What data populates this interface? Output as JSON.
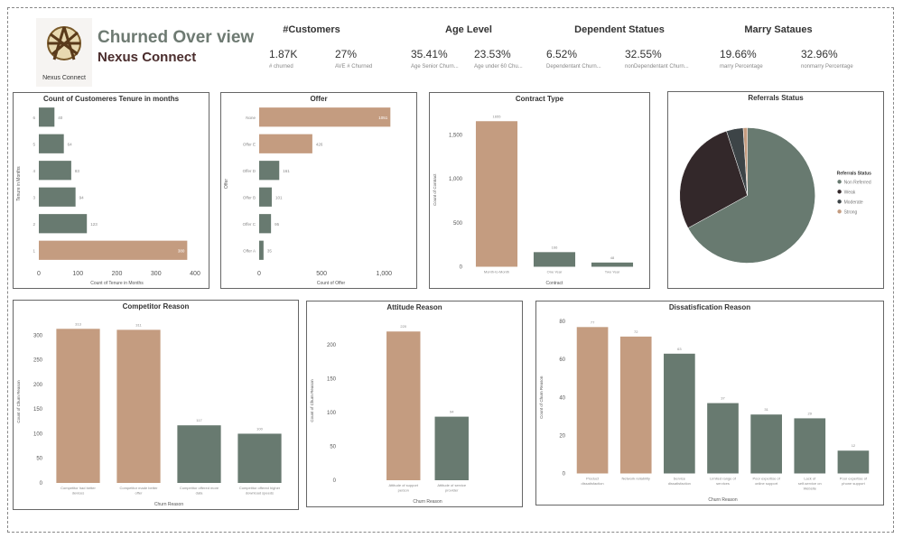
{
  "header": {
    "logo_text": "Nexus Connect",
    "title": "Churned Over view",
    "subtitle": "Nexus Connect"
  },
  "kpis": [
    {
      "title": "#Customers",
      "items": [
        {
          "value": "1.87K",
          "label": "# churned"
        },
        {
          "value": "27%",
          "label": "AVE # Churned"
        }
      ]
    },
    {
      "title": "Age Level",
      "items": [
        {
          "value": "35.41%",
          "label": "Age Senior Churn..."
        },
        {
          "value": "23.53%",
          "label": "Age under 60 Chu..."
        }
      ]
    },
    {
      "title": "Dependent Statues",
      "items": [
        {
          "value": "6.52%",
          "label": "Dependentant Churn..."
        },
        {
          "value": "32.55%",
          "label": "nonDependentant Churn..."
        }
      ]
    },
    {
      "title": "Marry Sataues",
      "items": [
        {
          "value": "19.66%",
          "label": "marry Percentage"
        },
        {
          "value": "32.96%",
          "label": "nonmarry Percentage"
        }
      ]
    }
  ],
  "colors": {
    "tan": "#c49c80",
    "green": "#687a70",
    "weak": "#33282a",
    "moderate": "#3d4447"
  },
  "chart_data": [
    {
      "id": "tenure",
      "type": "bar",
      "orientation": "horizontal",
      "title": "Count of Customeres Tenure in months",
      "xlabel": "Count of Tenure in Months",
      "ylabel": "Tenure in Months",
      "categories": [
        "6",
        "5",
        "4",
        "3",
        "2",
        "1"
      ],
      "values": [
        40,
        64,
        83,
        94,
        123,
        380
      ],
      "colors": [
        "#687a70",
        "#687a70",
        "#687a70",
        "#687a70",
        "#687a70",
        "#c49c80"
      ],
      "ticks": [
        0,
        100,
        200,
        300,
        400
      ],
      "xlim": [
        0,
        400
      ]
    },
    {
      "id": "offer",
      "type": "bar",
      "orientation": "horizontal",
      "title": "Offer",
      "xlabel": "Count of Offer",
      "ylabel": "Offer",
      "categories": [
        "None",
        "Offer E",
        "Offer D",
        "Offer B",
        "Offer C",
        "Offer A"
      ],
      "values": [
        1051,
        426,
        161,
        101,
        95,
        35
      ],
      "colors": [
        "#c49c80",
        "#c49c80",
        "#687a70",
        "#687a70",
        "#687a70",
        "#687a70"
      ],
      "ticks": [
        0,
        500,
        1000
      ],
      "tick_labels": [
        "0",
        "500",
        "1,000"
      ],
      "xlim": [
        0,
        1150
      ]
    },
    {
      "id": "contract",
      "type": "bar",
      "orientation": "vertical",
      "title": "Contract Type",
      "xlabel": "Contract",
      "ylabel": "Count of Contract",
      "categories": [
        "Month-to-Month",
        "One Year",
        "Two Year"
      ],
      "values": [
        1655,
        166,
        48
      ],
      "colors": [
        "#c49c80",
        "#687a70",
        "#687a70"
      ],
      "ticks": [
        0,
        500,
        1000,
        1500
      ],
      "tick_labels": [
        "0",
        "500",
        "1,000",
        "1,500"
      ],
      "ylim": [
        0,
        1750
      ]
    },
    {
      "id": "referral",
      "type": "pie",
      "title": "Referrals Status",
      "legend_title": "Referrals Status",
      "legend": "right",
      "slices": [
        {
          "name": "Non Referred",
          "value": 67,
          "color": "#687a70"
        },
        {
          "name": "Weak",
          "value": 28,
          "color": "#33282a"
        },
        {
          "name": "Moderate",
          "value": 4,
          "color": "#3d4447"
        },
        {
          "name": "Strong",
          "value": 1,
          "color": "#c49c80"
        }
      ]
    },
    {
      "id": "competitor",
      "type": "bar",
      "orientation": "vertical",
      "title": "Competitor Reason",
      "xlabel": "Churn Reason",
      "ylabel": "Count of Churn Reason",
      "categories": [
        "Competitor had better devices",
        "Competitor made better offer",
        "Competitor offered more data",
        "Competitor offered higher download speeds"
      ],
      "values": [
        313,
        311,
        117,
        100
      ],
      "colors": [
        "#c49c80",
        "#c49c80",
        "#687a70",
        "#687a70"
      ],
      "ticks": [
        0,
        50,
        100,
        150,
        200,
        250,
        300
      ],
      "ylim": [
        0,
        330
      ]
    },
    {
      "id": "attitude",
      "type": "bar",
      "orientation": "vertical",
      "title": "Attitude Reason",
      "xlabel": "Churn Reason",
      "ylabel": "Count of Churn Reason",
      "categories": [
        "Attitude of support person",
        "Attitude of service provider"
      ],
      "values": [
        220,
        94
      ],
      "colors": [
        "#c49c80",
        "#687a70"
      ],
      "ticks": [
        0,
        50,
        100,
        150,
        200
      ],
      "ylim": [
        0,
        235
      ]
    },
    {
      "id": "dissat",
      "type": "bar",
      "orientation": "vertical",
      "title": "Dissatisfication Reason",
      "xlabel": "Churn Reason",
      "ylabel": "Count of Churn Reason",
      "categories": [
        "Product dissatisfaction",
        "Network reliability",
        "Service dissatisfaction",
        "Limited range of services",
        "Poor expertise of online support",
        "Lack of self-service on Website",
        "Poor expertise of phone support"
      ],
      "values": [
        77,
        72,
        63,
        37,
        31,
        29,
        12
      ],
      "colors": [
        "#c49c80",
        "#c49c80",
        "#687a70",
        "#687a70",
        "#687a70",
        "#687a70",
        "#687a70"
      ],
      "ticks": [
        0,
        20,
        40,
        60,
        80
      ],
      "ylim": [
        0,
        80
      ]
    }
  ]
}
